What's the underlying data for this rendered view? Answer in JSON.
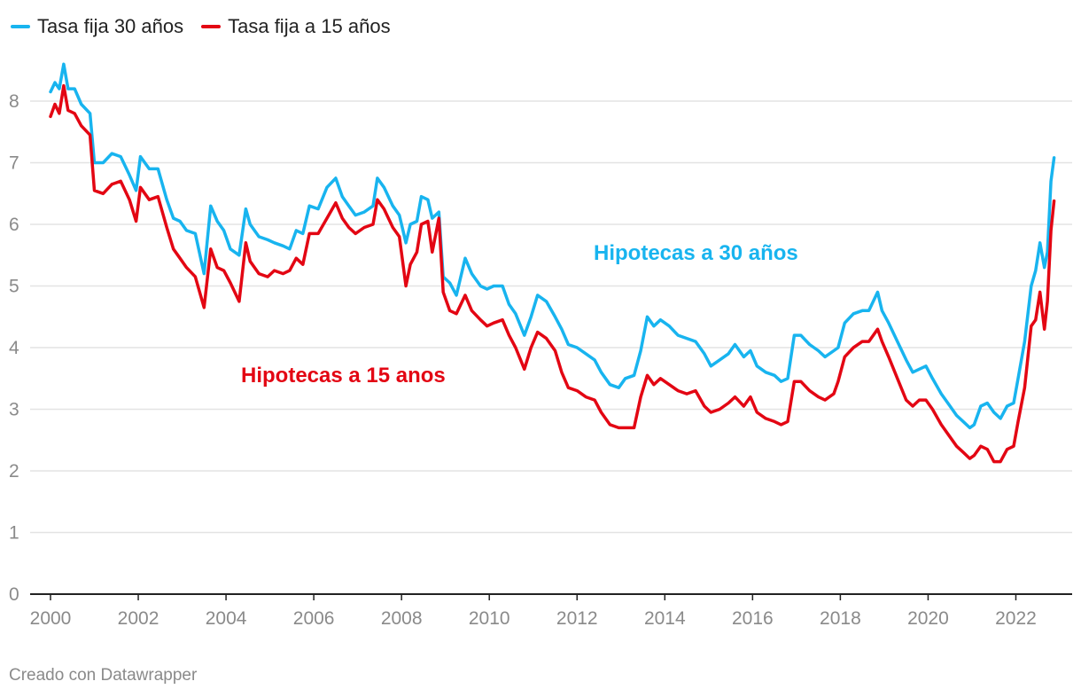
{
  "legend": [
    {
      "label": "Tasa fija 30 años",
      "color": "#18b4ef"
    },
    {
      "label": "Tasa fija a 15 años",
      "color": "#e30613"
    }
  ],
  "annotations": {
    "thirty": "Hipotecas a 30 años",
    "fifteen": "Hipotecas a 15 anos"
  },
  "footer": "Creado con Datawrapper",
  "chart_data": {
    "type": "line",
    "title": "",
    "xlabel": "",
    "ylabel": "",
    "xlim": [
      2000,
      2023
    ],
    "ylim": [
      0,
      8.5
    ],
    "x_ticks": [
      "2000",
      "2002",
      "2004",
      "2006",
      "2008",
      "2010",
      "2012",
      "2014",
      "2016",
      "2018",
      "2020",
      "2022"
    ],
    "y_ticks": [
      "0",
      "1",
      "2",
      "3",
      "4",
      "5",
      "6",
      "7",
      "8"
    ],
    "grid": true,
    "legend_position": "top-left",
    "series": [
      {
        "name": "Tasa fija 30 años",
        "color": "#18b4ef",
        "points": [
          [
            2000.0,
            8.15
          ],
          [
            2000.1,
            8.3
          ],
          [
            2000.2,
            8.2
          ],
          [
            2000.3,
            8.6
          ],
          [
            2000.4,
            8.2
          ],
          [
            2000.55,
            8.2
          ],
          [
            2000.7,
            7.95
          ],
          [
            2000.9,
            7.8
          ],
          [
            2001.0,
            7.0
          ],
          [
            2001.2,
            7.0
          ],
          [
            2001.4,
            7.15
          ],
          [
            2001.6,
            7.1
          ],
          [
            2001.8,
            6.8
          ],
          [
            2001.95,
            6.55
          ],
          [
            2002.05,
            7.1
          ],
          [
            2002.25,
            6.9
          ],
          [
            2002.45,
            6.9
          ],
          [
            2002.65,
            6.4
          ],
          [
            2002.8,
            6.1
          ],
          [
            2002.95,
            6.05
          ],
          [
            2003.1,
            5.9
          ],
          [
            2003.3,
            5.85
          ],
          [
            2003.5,
            5.2
          ],
          [
            2003.65,
            6.3
          ],
          [
            2003.8,
            6.05
          ],
          [
            2003.95,
            5.9
          ],
          [
            2004.1,
            5.6
          ],
          [
            2004.3,
            5.5
          ],
          [
            2004.45,
            6.25
          ],
          [
            2004.55,
            6.0
          ],
          [
            2004.75,
            5.8
          ],
          [
            2004.95,
            5.75
          ],
          [
            2005.1,
            5.7
          ],
          [
            2005.3,
            5.65
          ],
          [
            2005.45,
            5.6
          ],
          [
            2005.6,
            5.9
          ],
          [
            2005.75,
            5.85
          ],
          [
            2005.9,
            6.3
          ],
          [
            2006.1,
            6.25
          ],
          [
            2006.3,
            6.6
          ],
          [
            2006.5,
            6.75
          ],
          [
            2006.65,
            6.45
          ],
          [
            2006.8,
            6.3
          ],
          [
            2006.95,
            6.15
          ],
          [
            2007.15,
            6.2
          ],
          [
            2007.35,
            6.3
          ],
          [
            2007.45,
            6.75
          ],
          [
            2007.6,
            6.6
          ],
          [
            2007.8,
            6.3
          ],
          [
            2007.95,
            6.15
          ],
          [
            2008.1,
            5.7
          ],
          [
            2008.2,
            6.0
          ],
          [
            2008.35,
            6.05
          ],
          [
            2008.45,
            6.45
          ],
          [
            2008.6,
            6.4
          ],
          [
            2008.7,
            6.1
          ],
          [
            2008.85,
            6.2
          ],
          [
            2008.95,
            5.15
          ],
          [
            2009.1,
            5.05
          ],
          [
            2009.25,
            4.85
          ],
          [
            2009.45,
            5.45
          ],
          [
            2009.6,
            5.2
          ],
          [
            2009.8,
            5.0
          ],
          [
            2009.95,
            4.95
          ],
          [
            2010.1,
            5.0
          ],
          [
            2010.3,
            5.0
          ],
          [
            2010.45,
            4.7
          ],
          [
            2010.6,
            4.55
          ],
          [
            2010.8,
            4.2
          ],
          [
            2010.95,
            4.5
          ],
          [
            2011.1,
            4.85
          ],
          [
            2011.3,
            4.75
          ],
          [
            2011.5,
            4.5
          ],
          [
            2011.65,
            4.3
          ],
          [
            2011.8,
            4.05
          ],
          [
            2012.0,
            4.0
          ],
          [
            2012.2,
            3.9
          ],
          [
            2012.4,
            3.8
          ],
          [
            2012.55,
            3.6
          ],
          [
            2012.75,
            3.4
          ],
          [
            2012.95,
            3.35
          ],
          [
            2013.1,
            3.5
          ],
          [
            2013.3,
            3.55
          ],
          [
            2013.45,
            3.95
          ],
          [
            2013.6,
            4.5
          ],
          [
            2013.75,
            4.35
          ],
          [
            2013.9,
            4.45
          ],
          [
            2014.1,
            4.35
          ],
          [
            2014.3,
            4.2
          ],
          [
            2014.5,
            4.15
          ],
          [
            2014.7,
            4.1
          ],
          [
            2014.9,
            3.9
          ],
          [
            2015.05,
            3.7
          ],
          [
            2015.25,
            3.8
          ],
          [
            2015.45,
            3.9
          ],
          [
            2015.6,
            4.05
          ],
          [
            2015.8,
            3.85
          ],
          [
            2015.95,
            3.95
          ],
          [
            2016.1,
            3.7
          ],
          [
            2016.3,
            3.6
          ],
          [
            2016.5,
            3.55
          ],
          [
            2016.65,
            3.45
          ],
          [
            2016.8,
            3.5
          ],
          [
            2016.95,
            4.2
          ],
          [
            2017.1,
            4.2
          ],
          [
            2017.3,
            4.05
          ],
          [
            2017.5,
            3.95
          ],
          [
            2017.65,
            3.85
          ],
          [
            2017.85,
            3.95
          ],
          [
            2017.95,
            4.0
          ],
          [
            2018.1,
            4.4
          ],
          [
            2018.3,
            4.55
          ],
          [
            2018.5,
            4.6
          ],
          [
            2018.65,
            4.6
          ],
          [
            2018.85,
            4.9
          ],
          [
            2018.95,
            4.6
          ],
          [
            2019.1,
            4.4
          ],
          [
            2019.3,
            4.1
          ],
          [
            2019.5,
            3.8
          ],
          [
            2019.65,
            3.6
          ],
          [
            2019.8,
            3.65
          ],
          [
            2019.95,
            3.7
          ],
          [
            2020.1,
            3.5
          ],
          [
            2020.3,
            3.25
          ],
          [
            2020.5,
            3.05
          ],
          [
            2020.65,
            2.9
          ],
          [
            2020.8,
            2.8
          ],
          [
            2020.95,
            2.7
          ],
          [
            2021.05,
            2.75
          ],
          [
            2021.2,
            3.05
          ],
          [
            2021.35,
            3.1
          ],
          [
            2021.5,
            2.95
          ],
          [
            2021.65,
            2.85
          ],
          [
            2021.8,
            3.05
          ],
          [
            2021.95,
            3.1
          ],
          [
            2022.05,
            3.5
          ],
          [
            2022.2,
            4.1
          ],
          [
            2022.35,
            5.0
          ],
          [
            2022.45,
            5.25
          ],
          [
            2022.55,
            5.7
          ],
          [
            2022.65,
            5.3
          ],
          [
            2022.72,
            5.55
          ],
          [
            2022.8,
            6.7
          ],
          [
            2022.87,
            7.08
          ]
        ]
      },
      {
        "name": "Tasa fija a 15 años",
        "color": "#e30613",
        "points": [
          [
            2000.0,
            7.75
          ],
          [
            2000.1,
            7.95
          ],
          [
            2000.2,
            7.8
          ],
          [
            2000.3,
            8.25
          ],
          [
            2000.4,
            7.85
          ],
          [
            2000.55,
            7.8
          ],
          [
            2000.7,
            7.6
          ],
          [
            2000.9,
            7.45
          ],
          [
            2001.0,
            6.55
          ],
          [
            2001.2,
            6.5
          ],
          [
            2001.4,
            6.65
          ],
          [
            2001.6,
            6.7
          ],
          [
            2001.8,
            6.4
          ],
          [
            2001.95,
            6.05
          ],
          [
            2002.05,
            6.6
          ],
          [
            2002.25,
            6.4
          ],
          [
            2002.45,
            6.45
          ],
          [
            2002.65,
            5.95
          ],
          [
            2002.8,
            5.6
          ],
          [
            2002.95,
            5.45
          ],
          [
            2003.1,
            5.3
          ],
          [
            2003.3,
            5.15
          ],
          [
            2003.5,
            4.65
          ],
          [
            2003.65,
            5.6
          ],
          [
            2003.8,
            5.3
          ],
          [
            2003.95,
            5.25
          ],
          [
            2004.1,
            5.05
          ],
          [
            2004.3,
            4.75
          ],
          [
            2004.45,
            5.7
          ],
          [
            2004.55,
            5.4
          ],
          [
            2004.75,
            5.2
          ],
          [
            2004.95,
            5.15
          ],
          [
            2005.1,
            5.25
          ],
          [
            2005.3,
            5.2
          ],
          [
            2005.45,
            5.25
          ],
          [
            2005.6,
            5.45
          ],
          [
            2005.75,
            5.35
          ],
          [
            2005.9,
            5.85
          ],
          [
            2006.1,
            5.85
          ],
          [
            2006.3,
            6.1
          ],
          [
            2006.5,
            6.35
          ],
          [
            2006.65,
            6.1
          ],
          [
            2006.8,
            5.95
          ],
          [
            2006.95,
            5.85
          ],
          [
            2007.15,
            5.95
          ],
          [
            2007.35,
            6.0
          ],
          [
            2007.45,
            6.4
          ],
          [
            2007.6,
            6.25
          ],
          [
            2007.8,
            5.95
          ],
          [
            2007.95,
            5.8
          ],
          [
            2008.1,
            5.0
          ],
          [
            2008.2,
            5.35
          ],
          [
            2008.35,
            5.55
          ],
          [
            2008.45,
            6.0
          ],
          [
            2008.6,
            6.05
          ],
          [
            2008.7,
            5.55
          ],
          [
            2008.85,
            6.1
          ],
          [
            2008.95,
            4.9
          ],
          [
            2009.1,
            4.6
          ],
          [
            2009.25,
            4.55
          ],
          [
            2009.45,
            4.85
          ],
          [
            2009.6,
            4.6
          ],
          [
            2009.8,
            4.45
          ],
          [
            2009.95,
            4.35
          ],
          [
            2010.1,
            4.4
          ],
          [
            2010.3,
            4.45
          ],
          [
            2010.45,
            4.2
          ],
          [
            2010.6,
            4.0
          ],
          [
            2010.8,
            3.65
          ],
          [
            2010.95,
            4.0
          ],
          [
            2011.1,
            4.25
          ],
          [
            2011.3,
            4.15
          ],
          [
            2011.5,
            3.95
          ],
          [
            2011.65,
            3.6
          ],
          [
            2011.8,
            3.35
          ],
          [
            2012.0,
            3.3
          ],
          [
            2012.2,
            3.2
          ],
          [
            2012.4,
            3.15
          ],
          [
            2012.55,
            2.95
          ],
          [
            2012.75,
            2.75
          ],
          [
            2012.95,
            2.7
          ],
          [
            2013.1,
            2.7
          ],
          [
            2013.3,
            2.7
          ],
          [
            2013.45,
            3.2
          ],
          [
            2013.6,
            3.55
          ],
          [
            2013.75,
            3.4
          ],
          [
            2013.9,
            3.5
          ],
          [
            2014.1,
            3.4
          ],
          [
            2014.3,
            3.3
          ],
          [
            2014.5,
            3.25
          ],
          [
            2014.7,
            3.3
          ],
          [
            2014.9,
            3.05
          ],
          [
            2015.05,
            2.95
          ],
          [
            2015.25,
            3.0
          ],
          [
            2015.45,
            3.1
          ],
          [
            2015.6,
            3.2
          ],
          [
            2015.8,
            3.05
          ],
          [
            2015.95,
            3.2
          ],
          [
            2016.1,
            2.95
          ],
          [
            2016.3,
            2.85
          ],
          [
            2016.5,
            2.8
          ],
          [
            2016.65,
            2.75
          ],
          [
            2016.8,
            2.8
          ],
          [
            2016.95,
            3.45
          ],
          [
            2017.1,
            3.45
          ],
          [
            2017.3,
            3.3
          ],
          [
            2017.5,
            3.2
          ],
          [
            2017.65,
            3.15
          ],
          [
            2017.85,
            3.25
          ],
          [
            2017.95,
            3.45
          ],
          [
            2018.1,
            3.85
          ],
          [
            2018.3,
            4.0
          ],
          [
            2018.5,
            4.1
          ],
          [
            2018.65,
            4.1
          ],
          [
            2018.85,
            4.3
          ],
          [
            2018.95,
            4.1
          ],
          [
            2019.1,
            3.85
          ],
          [
            2019.3,
            3.5
          ],
          [
            2019.5,
            3.15
          ],
          [
            2019.65,
            3.05
          ],
          [
            2019.8,
            3.15
          ],
          [
            2019.95,
            3.15
          ],
          [
            2020.1,
            3.0
          ],
          [
            2020.3,
            2.75
          ],
          [
            2020.5,
            2.55
          ],
          [
            2020.65,
            2.4
          ],
          [
            2020.8,
            2.3
          ],
          [
            2020.95,
            2.2
          ],
          [
            2021.05,
            2.25
          ],
          [
            2021.2,
            2.4
          ],
          [
            2021.35,
            2.35
          ],
          [
            2021.5,
            2.15
          ],
          [
            2021.65,
            2.15
          ],
          [
            2021.8,
            2.35
          ],
          [
            2021.95,
            2.4
          ],
          [
            2022.05,
            2.8
          ],
          [
            2022.2,
            3.35
          ],
          [
            2022.35,
            4.35
          ],
          [
            2022.45,
            4.45
          ],
          [
            2022.55,
            4.9
          ],
          [
            2022.65,
            4.3
          ],
          [
            2022.72,
            4.75
          ],
          [
            2022.8,
            5.9
          ],
          [
            2022.87,
            6.38
          ]
        ]
      }
    ]
  }
}
